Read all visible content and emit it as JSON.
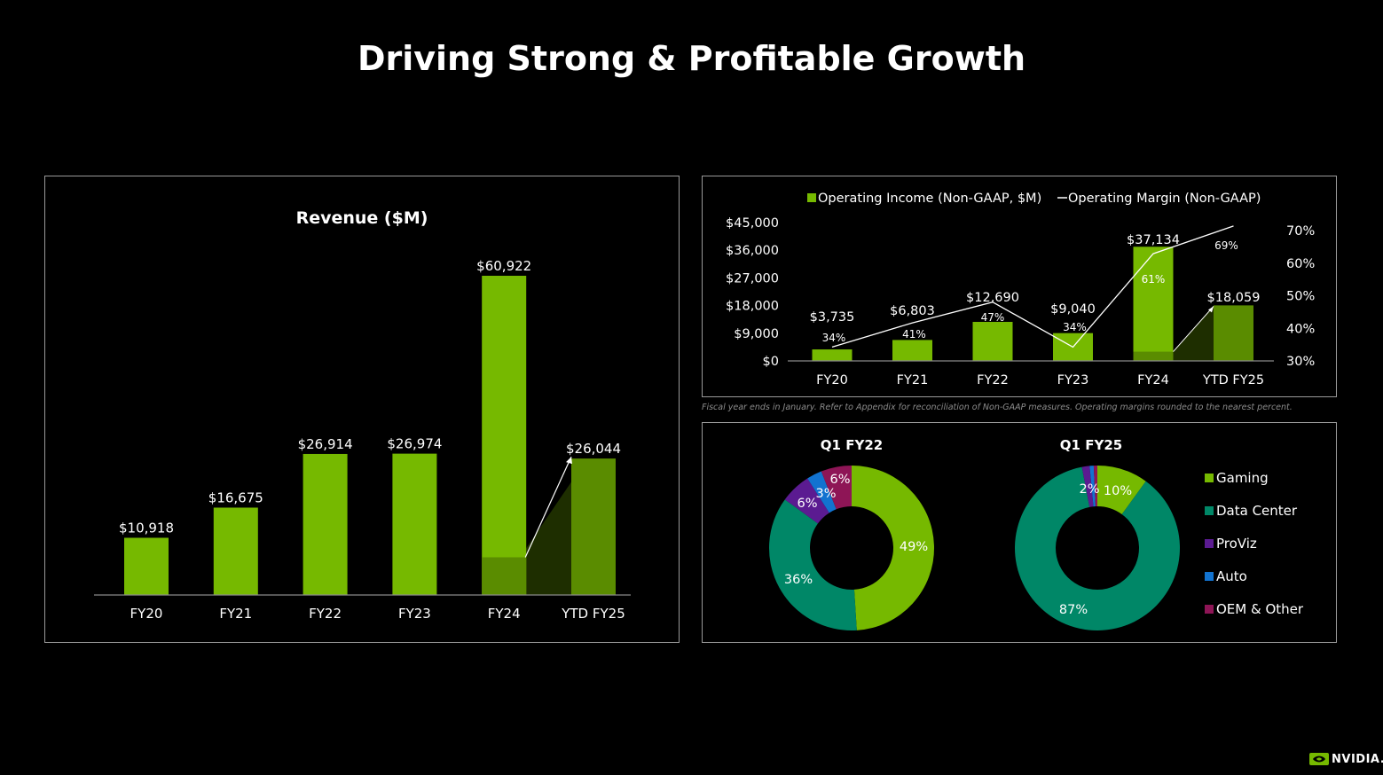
{
  "page": {
    "title": "Driving Strong & Profitable Growth"
  },
  "colors": {
    "green": "#76b900",
    "dark_green": "#5a8c00",
    "shadow": "#1e2e00",
    "teal": "#008767",
    "purple": "#5b1b91",
    "blue": "#1273d0",
    "magenta": "#8e1556",
    "panel_border": "#9a9a9a"
  },
  "chart_data": [
    {
      "id": "revenue",
      "type": "bar",
      "title": "Revenue ($M)",
      "categories": [
        "FY20",
        "FY21",
        "FY22",
        "FY23",
        "FY24",
        "YTD FY25"
      ],
      "values": [
        10918,
        16675,
        26914,
        26974,
        60922,
        26044
      ],
      "labels": [
        "$10,918",
        "$16,675",
        "$26,914",
        "$26,974",
        "$60,922",
        "$26,044"
      ],
      "highlight_base": {
        "category": "FY24",
        "value": 7192
      },
      "ylim": [
        0,
        65000
      ],
      "grid": false
    },
    {
      "id": "operating",
      "type": "bar+line",
      "legend": [
        "Operating Income (Non-GAAP, $M)",
        "Operating Margin (Non-GAAP)"
      ],
      "legend_position": "top",
      "categories": [
        "FY20",
        "FY21",
        "FY22",
        "FY23",
        "FY24",
        "YTD FY25"
      ],
      "values": [
        3735,
        6803,
        12690,
        9040,
        37134,
        18059
      ],
      "labels": [
        "$3,735",
        "$6,803",
        "$12,690",
        "$9,040",
        "$37,134",
        "$18,059"
      ],
      "margin_values": [
        34,
        41,
        47,
        34,
        61,
        69
      ],
      "margin_labels": [
        "34%",
        "41%",
        "47%",
        "34%",
        "61%",
        "69%"
      ],
      "highlight_base": {
        "category": "FY24",
        "value": 3000
      },
      "y_left": {
        "ticks": [
          "$45,000",
          "$36,000",
          "$27,000",
          "$18,000",
          "$9,000",
          "$0"
        ],
        "lim": [
          0,
          45000
        ]
      },
      "y_right": {
        "ticks": [
          "70%",
          "60%",
          "50%",
          "40%",
          "30%"
        ],
        "lim": [
          30,
          70
        ]
      }
    },
    {
      "id": "mix",
      "type": "pie",
      "legend": [
        "Gaming",
        "Data Center",
        "ProViz",
        "Auto",
        "OEM & Other"
      ],
      "legend_position": "right",
      "donuts": [
        {
          "title": "Q1 FY22",
          "values": [
            49,
            36,
            6,
            3,
            6
          ],
          "labels": [
            "49%",
            "36%",
            "6%",
            "3%",
            "6%"
          ]
        },
        {
          "title": "Q1 FY25",
          "values": [
            10,
            87,
            1.5,
            0.8,
            0.7
          ],
          "labels": [
            "10%",
            "87%",
            "2%",
            "",
            ""
          ]
        }
      ]
    }
  ],
  "footnote": "Fiscal year ends in January. Refer to Appendix for reconciliation of Non-GAAP measures. Operating margins rounded to the nearest percent.",
  "logo": {
    "text": "NVIDIA."
  }
}
